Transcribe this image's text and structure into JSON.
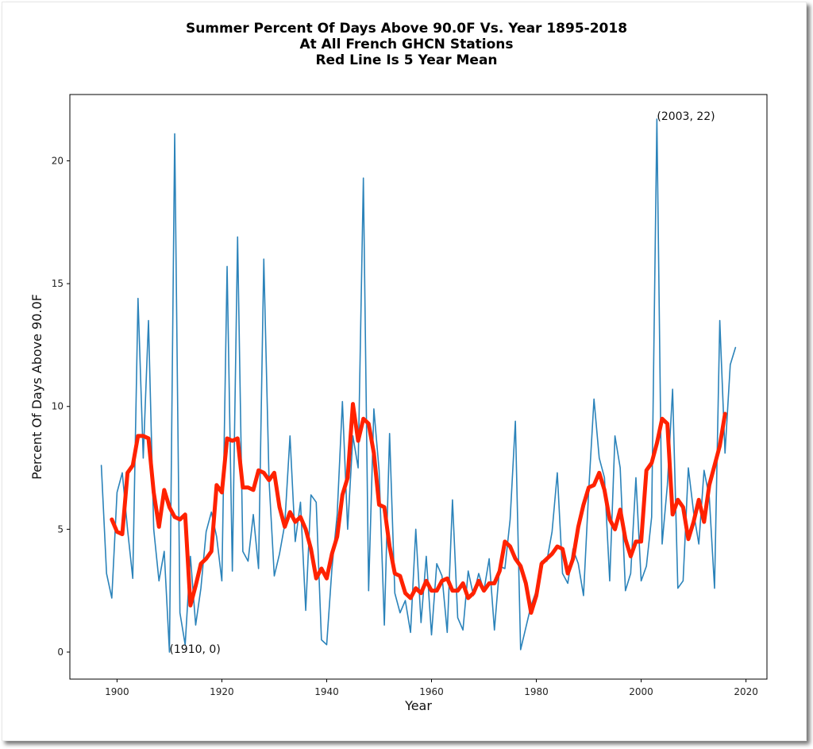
{
  "chart_data": {
    "type": "line",
    "title": [
      "Summer Percent Of Days Above 90.0F Vs. Year 1895-2018",
      "At All French GHCN Stations",
      "Red Line Is 5 Year Mean"
    ],
    "xlabel": "Year",
    "ylabel": "Percent Of Days Above 90.0F",
    "xlim": [
      1891,
      2024
    ],
    "ylim": [
      -1.1,
      22.7
    ],
    "xticks": [
      1900,
      1920,
      1940,
      1960,
      1980,
      2000,
      2020
    ],
    "yticks": [
      0,
      5,
      10,
      15,
      20
    ],
    "grid": false,
    "legend": null,
    "colors": {
      "annual": "#2b83ba",
      "mean": "#ff2200"
    },
    "annotations": [
      {
        "text": "(1910, 0)",
        "x": 1910,
        "y": 0
      },
      {
        "text": "(2003, 22)",
        "x": 2003,
        "y": 21.7
      }
    ],
    "series": [
      {
        "name": "Annual percent of days above 90.0F",
        "color": "#2b83ba",
        "x_start": 1897,
        "values": [
          7.6,
          3.2,
          2.2,
          6.5,
          7.3,
          5.0,
          3.0,
          14.4,
          7.9,
          13.5,
          5.0,
          2.9,
          4.1,
          0.0,
          21.1,
          1.6,
          0.3,
          3.9,
          1.1,
          2.6,
          4.9,
          5.7,
          4.7,
          2.9,
          15.7,
          3.3,
          16.9,
          4.1,
          3.7,
          5.6,
          3.4,
          16.0,
          7.0,
          3.1,
          4.0,
          5.2,
          8.8,
          4.5,
          6.1,
          1.7,
          6.4,
          6.1,
          0.5,
          0.3,
          3.4,
          5.6,
          10.2,
          5.0,
          8.8,
          7.5,
          19.3,
          2.5,
          9.9,
          7.4,
          1.1,
          8.9,
          2.4,
          1.6,
          2.1,
          0.8,
          5.0,
          1.2,
          3.9,
          0.7,
          3.6,
          3.1,
          0.8,
          6.2,
          1.4,
          0.9,
          3.3,
          2.3,
          3.2,
          2.5,
          3.8,
          0.9,
          3.5,
          3.4,
          5.4,
          9.4,
          0.1,
          1.0,
          1.9,
          2.5,
          3.7,
          3.7,
          4.9,
          7.3,
          3.2,
          2.8,
          4.2,
          3.6,
          2.3,
          6.6,
          10.3,
          7.9,
          7.1,
          2.9,
          8.8,
          7.5,
          2.5,
          3.2,
          7.1,
          2.9,
          3.5,
          5.5,
          21.7,
          4.4,
          6.8,
          10.7,
          2.6,
          2.9,
          7.5,
          5.7,
          4.4,
          7.4,
          6.3,
          2.6,
          13.5,
          8.1,
          11.7,
          12.4
        ]
      },
      {
        "name": "5 Year Mean",
        "color": "#ff2200",
        "x_start": 1899,
        "values": [
          5.4,
          4.9,
          4.8,
          7.3,
          7.6,
          8.8,
          8.8,
          8.7,
          6.5,
          5.1,
          6.6,
          5.9,
          5.5,
          5.4,
          5.6,
          1.9,
          2.7,
          3.6,
          3.8,
          4.1,
          6.8,
          6.5,
          8.7,
          8.6,
          8.7,
          6.7,
          6.7,
          6.6,
          7.4,
          7.3,
          7.0,
          7.3,
          5.9,
          5.1,
          5.7,
          5.3,
          5.5,
          5.0,
          4.2,
          3.0,
          3.4,
          3.0,
          4.0,
          4.7,
          6.4,
          7.1,
          10.1,
          8.6,
          9.5,
          9.3,
          8.1,
          6.0,
          5.9,
          4.3,
          3.2,
          3.1,
          2.4,
          2.2,
          2.6,
          2.4,
          2.9,
          2.5,
          2.5,
          2.9,
          3.0,
          2.5,
          2.5,
          2.8,
          2.2,
          2.4,
          2.9,
          2.5,
          2.8,
          2.8,
          3.3,
          4.5,
          4.3,
          3.8,
          3.5,
          2.8,
          1.6,
          2.3,
          3.6,
          3.8,
          4.0,
          4.3,
          4.2,
          3.2,
          3.8,
          5.1,
          6.0,
          6.7,
          6.8,
          7.3,
          6.6,
          5.4,
          5.0,
          5.8,
          4.6,
          3.9,
          4.5,
          4.5,
          7.4,
          7.7,
          8.5,
          9.5,
          9.3,
          5.6,
          6.2,
          5.9,
          4.6,
          5.3,
          6.2,
          5.3,
          6.8,
          7.6,
          8.4,
          9.7
        ]
      }
    ]
  }
}
